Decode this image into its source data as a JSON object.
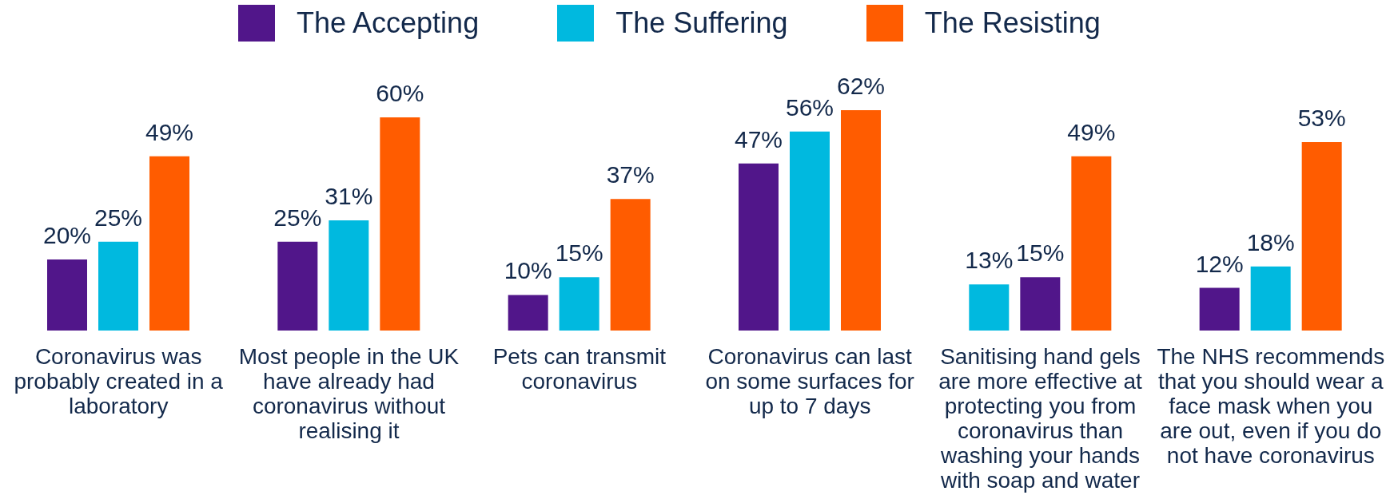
{
  "chart_data": {
    "type": "bar",
    "legend": "top",
    "categories": [
      "Coronavirus was probably created in a laboratory",
      "Most people in the UK have already had coronavirus without realising it",
      "Pets can transmit coronavirus",
      "Coronavirus can last on some surfaces for up to 7 days",
      "Sanitising hand gels are more effective at protecting you from coronavirus than washing your hands with soap and water",
      "The NHS recommends that you should wear a face mask when you are out, even if you do not have coronavirus"
    ],
    "series": [
      {
        "name": "The Accepting",
        "color": "#51168a",
        "colors": [
          "#51168a",
          "#51168a",
          "#51168a",
          "#51168a",
          "#00b9df",
          "#51168a"
        ],
        "values": [
          20,
          25,
          10,
          47,
          13,
          12
        ],
        "value_labels": [
          "20%",
          "25%",
          "10%",
          "47%",
          "13%",
          "12%"
        ]
      },
      {
        "name": "The Suffering",
        "color": "#00b9df",
        "colors": [
          "#00b9df",
          "#00b9df",
          "#00b9df",
          "#00b9df",
          "#51168a",
          "#00b9df"
        ],
        "values": [
          25,
          31,
          15,
          56,
          15,
          18
        ],
        "value_labels": [
          "25%",
          "31%",
          "15%",
          "56%",
          "15%",
          "18%"
        ]
      },
      {
        "name": "The Resisting",
        "color": "#ff5c00",
        "values": [
          49,
          60,
          37,
          62,
          49,
          53
        ],
        "value_labels": [
          "49%",
          "60%",
          "37%",
          "62%",
          "49%",
          "53%"
        ]
      }
    ]
  }
}
